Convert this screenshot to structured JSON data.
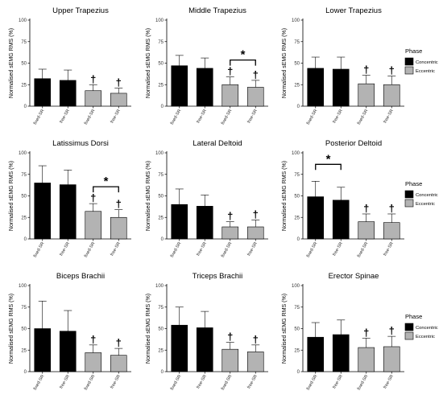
{
  "legend": {
    "title": "Phase",
    "items": [
      {
        "label": "Concentric",
        "color": "#000000"
      },
      {
        "label": "Eccentric",
        "color": "#b3b3b3"
      }
    ]
  },
  "significance_symbols": {
    "vs_concentric": "†",
    "between_conditions": "*"
  },
  "chart_data": [
    {
      "type": "bar",
      "title": "Upper Trapezius",
      "ylabel": "Normalised sEMG RMS (%)",
      "ylim": [
        0,
        100
      ],
      "yticks": [
        0,
        25,
        50,
        75,
        100
      ],
      "categories": [
        "fixed-SR",
        "free-SR",
        "fixed-SR",
        "free-SR"
      ],
      "phase": [
        "Concentric",
        "Concentric",
        "Eccentric",
        "Eccentric"
      ],
      "values": [
        32,
        30,
        18,
        15
      ],
      "error": [
        11,
        12,
        7,
        6
      ],
      "dagger": [
        false,
        false,
        true,
        true
      ],
      "star_bracket": null
    },
    {
      "type": "bar",
      "title": "Middle Trapezius",
      "ylabel": "Normalised sEMG RMS (%)",
      "ylim": [
        0,
        100
      ],
      "yticks": [
        0,
        25,
        50,
        75,
        100
      ],
      "categories": [
        "fixed-SR",
        "free-SR",
        "fixed-SR",
        "free-SR"
      ],
      "phase": [
        "Concentric",
        "Concentric",
        "Eccentric",
        "Eccentric"
      ],
      "values": [
        47,
        44,
        25,
        22
      ],
      "error": [
        12,
        12,
        9,
        8
      ],
      "dagger": [
        false,
        false,
        true,
        true
      ],
      "star_bracket": [
        2,
        3
      ]
    },
    {
      "type": "bar",
      "title": "Lower Trapezius",
      "ylabel": "Normalised sEMG RMS (%)",
      "ylim": [
        0,
        100
      ],
      "yticks": [
        0,
        25,
        50,
        75,
        100
      ],
      "categories": [
        "fixed-SR",
        "free-SR",
        "fixed-SR",
        "free-SR"
      ],
      "phase": [
        "Concentric",
        "Concentric",
        "Eccentric",
        "Eccentric"
      ],
      "values": [
        44,
        43,
        26,
        25
      ],
      "error": [
        13,
        14,
        10,
        10
      ],
      "dagger": [
        false,
        false,
        true,
        true
      ],
      "star_bracket": null
    },
    {
      "type": "bar",
      "title": "Latissimus Dorsi",
      "ylabel": "Normalised sEMG RMS (%)",
      "ylim": [
        0,
        100
      ],
      "yticks": [
        0,
        25,
        50,
        75,
        100
      ],
      "categories": [
        "fixed-SR",
        "free-SR",
        "fixed-SR",
        "free-SR"
      ],
      "phase": [
        "Concentric",
        "Concentric",
        "Eccentric",
        "Eccentric"
      ],
      "values": [
        65,
        63,
        32,
        25
      ],
      "error": [
        20,
        17,
        9,
        9
      ],
      "dagger": [
        false,
        false,
        true,
        true
      ],
      "star_bracket": [
        2,
        3
      ]
    },
    {
      "type": "bar",
      "title": "Lateral Deltoid",
      "ylabel": "Normalised sEMG RMS (%)",
      "ylim": [
        0,
        100
      ],
      "yticks": [
        0,
        25,
        50,
        75,
        100
      ],
      "categories": [
        "fixed-SR",
        "free-SR",
        "fixed-SR",
        "free-SR"
      ],
      "phase": [
        "Concentric",
        "Concentric",
        "Eccentric",
        "Eccentric"
      ],
      "values": [
        40,
        38,
        14,
        14
      ],
      "error": [
        18,
        13,
        6,
        8
      ],
      "dagger": [
        false,
        false,
        true,
        true
      ],
      "star_bracket": null
    },
    {
      "type": "bar",
      "title": "Posterior Deltoid",
      "ylabel": "Normalised sEMG RMS (%)",
      "ylim": [
        0,
        100
      ],
      "yticks": [
        0,
        25,
        50,
        75,
        100
      ],
      "categories": [
        "fixed-SR",
        "free-SR",
        "fixed-SR",
        "free-SR"
      ],
      "phase": [
        "Concentric",
        "Concentric",
        "Eccentric",
        "Eccentric"
      ],
      "values": [
        49,
        45,
        20,
        19
      ],
      "error": [
        18,
        15,
        9,
        10
      ],
      "dagger": [
        false,
        false,
        true,
        true
      ],
      "star_bracket": [
        0,
        1
      ]
    },
    {
      "type": "bar",
      "title": "Biceps Brachii",
      "ylabel": "Normalised sEMG RMS (%)",
      "ylim": [
        0,
        100
      ],
      "yticks": [
        0,
        25,
        50,
        75,
        100
      ],
      "categories": [
        "fixed-SR",
        "free-SR",
        "fixed-SR",
        "free-SR"
      ],
      "phase": [
        "Concentric",
        "Concentric",
        "Eccentric",
        "Eccentric"
      ],
      "values": [
        50,
        47,
        22,
        19
      ],
      "error": [
        32,
        24,
        9,
        8
      ],
      "dagger": [
        false,
        false,
        true,
        true
      ],
      "star_bracket": null
    },
    {
      "type": "bar",
      "title": "Triceps Brachii",
      "ylabel": "Normalised sEMG RMS (%)",
      "ylim": [
        0,
        100
      ],
      "yticks": [
        0,
        25,
        50,
        75,
        100
      ],
      "categories": [
        "fixed-SR",
        "free-SR",
        "fixed-SR",
        "free-SR"
      ],
      "phase": [
        "Concentric",
        "Concentric",
        "Eccentric",
        "Eccentric"
      ],
      "values": [
        54,
        51,
        26,
        23
      ],
      "error": [
        21,
        19,
        8,
        8
      ],
      "dagger": [
        false,
        false,
        true,
        true
      ],
      "star_bracket": null
    },
    {
      "type": "bar",
      "title": "Erector Spinae",
      "ylabel": "Normalised sEMG RMS (%)",
      "ylim": [
        0,
        100
      ],
      "yticks": [
        0,
        25,
        50,
        75,
        100
      ],
      "categories": [
        "fixed-SR",
        "free-SR",
        "fixed-SR",
        "free-SR"
      ],
      "phase": [
        "Concentric",
        "Concentric",
        "Eccentric",
        "Eccentric"
      ],
      "values": [
        40,
        43,
        28,
        29
      ],
      "error": [
        17,
        17,
        11,
        12
      ],
      "dagger": [
        false,
        false,
        true,
        true
      ],
      "star_bracket": null
    }
  ]
}
